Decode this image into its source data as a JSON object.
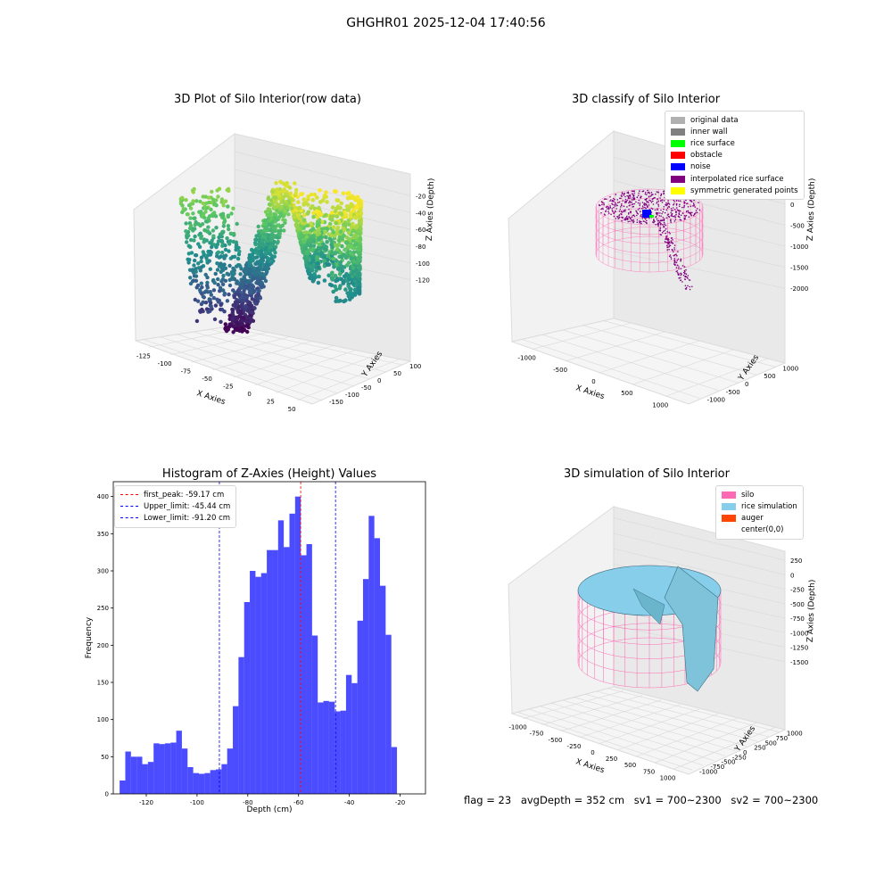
{
  "suptitle": "GHGHR01 2025-12-04 17:40:56",
  "panels": {
    "p1": {
      "title": "3D Plot of Silo Interior(row data)",
      "xlabel": "X Axies",
      "ylabel": "Y Axies",
      "zlabel": "Z Axies (Depth)",
      "xticks": [
        "-125",
        "-100",
        "-75",
        "-50",
        "-25",
        "0",
        "25",
        "50"
      ],
      "yticks": [
        "-150",
        "-100",
        "-50",
        "0",
        "50",
        "100"
      ],
      "zticks": [
        "-20",
        "-40",
        "-60",
        "-80",
        "-100",
        "-120"
      ]
    },
    "p2": {
      "title": "3D classify of Silo Interior",
      "xlabel": "X Axies",
      "ylabel": "Y Axies",
      "zlabel": "Z Axies (Depth)",
      "xticks": [
        "-1000",
        "-500",
        "0",
        "500",
        "1000"
      ],
      "yticks": [
        "-1000",
        "-500",
        "0",
        "500",
        "1000"
      ],
      "zticks": [
        "0",
        "-500",
        "-1000",
        "-1500",
        "-2000"
      ],
      "legend": [
        {
          "label": "original data",
          "color": "#b0b0b0"
        },
        {
          "label": "inner wall",
          "color": "#808080"
        },
        {
          "label": "rice surface",
          "color": "#00ff00"
        },
        {
          "label": "obstacle",
          "color": "#ff0000"
        },
        {
          "label": "noise",
          "color": "#0000ff"
        },
        {
          "label": "interpolated rice surface",
          "color": "#800080"
        },
        {
          "label": "symmetric generated points",
          "color": "#ffff00"
        }
      ]
    },
    "p3": {
      "title": "Histogram of Z-Axies (Height) Values",
      "xlabel": "Depth (cm)",
      "ylabel": "Frequency",
      "legend": [
        {
          "label": "first_peak: -59.17 cm",
          "color": "#ff0000"
        },
        {
          "label": "Upper_limit: -45.44 cm",
          "color": "#0000ff"
        },
        {
          "label": "Lower_limit: -91.20 cm",
          "color": "#0000ff"
        }
      ]
    },
    "p4": {
      "title": "3D simulation of Silo Interior",
      "xlabel": "X Axies",
      "ylabel": "Y Axies",
      "zlabel": "Z Axies (Depth)",
      "xticks": [
        "-1000",
        "-750",
        "-500",
        "-250",
        "0",
        "250",
        "500",
        "750",
        "1000"
      ],
      "yticks": [
        "-1000",
        "-750",
        "-500",
        "-250",
        "0",
        "250",
        "500",
        "750",
        "1000"
      ],
      "zticks": [
        "250",
        "0",
        "-250",
        "-500",
        "-750",
        "-1000",
        "-1250",
        "-1500"
      ],
      "legend": [
        {
          "label": "silo",
          "color": "#ff69b4"
        },
        {
          "label": "rice simulation",
          "color": "#87ceeb"
        },
        {
          "label": "auger",
          "color": "#ff4500"
        },
        {
          "label": "center(0,0)",
          "color": ""
        }
      ]
    }
  },
  "info": {
    "flag": "flag = 23",
    "avg": "avgDepth = 352 cm",
    "sv1": "sv1 = 700~2300",
    "sv2": "sv2 = 700~2300"
  },
  "chart_data": [
    {
      "type": "scatter",
      "title": "3D Plot of Silo Interior(row data)",
      "xlabel": "X Axies",
      "ylabel": "Y Axies",
      "zlabel": "Z Axies (Depth)",
      "xlim": [
        -135,
        60
      ],
      "ylim": [
        -155,
        110
      ],
      "zlim": [
        -130,
        -15
      ],
      "colormap": "viridis"
    },
    {
      "type": "scatter",
      "title": "3D classify of Silo Interior",
      "xlabel": "X Axies",
      "ylabel": "Y Axies",
      "zlabel": "Z Axies (Depth)",
      "xlim": [
        -1200,
        1200
      ],
      "ylim": [
        -1200,
        1200
      ],
      "zlim": [
        -2200,
        0
      ]
    },
    {
      "type": "bar",
      "title": "Histogram of Z-Axies (Height) Values",
      "xlabel": "Depth (cm)",
      "ylabel": "Frequency",
      "xlim": [
        -133,
        -10
      ],
      "ylim": [
        0,
        420
      ],
      "bin_start": -130.5,
      "bin_width": 2.23,
      "values": [
        18,
        57,
        50,
        50,
        40,
        43,
        68,
        67,
        68,
        69,
        85,
        61,
        36,
        28,
        27,
        28,
        32,
        33,
        40,
        61,
        118,
        184,
        258,
        300,
        292,
        297,
        328,
        328,
        368,
        332,
        377,
        400,
        321,
        336,
        213,
        123,
        125,
        124,
        111,
        112,
        160,
        149,
        233,
        289,
        374,
        344,
        280,
        214,
        63
      ],
      "vlines": [
        {
          "name": "first_peak",
          "x": -59.17,
          "color": "#ff0000"
        },
        {
          "name": "Upper_limit",
          "x": -45.44,
          "color": "#0000ff"
        },
        {
          "name": "Lower_limit",
          "x": -91.2,
          "color": "#0000ff"
        }
      ],
      "xticks": [
        -120,
        -100,
        -80,
        -60,
        -40,
        -20
      ],
      "yticks": [
        0,
        50,
        100,
        150,
        200,
        250,
        300,
        350,
        400
      ],
      "bar_color": "#0000ff"
    },
    {
      "type": "area",
      "title": "3D simulation of Silo Interior",
      "xlabel": "X Axies",
      "ylabel": "Y Axies",
      "zlabel": "Z Axies (Depth)",
      "xlim": [
        -1000,
        1000
      ],
      "ylim": [
        -1000,
        1000
      ],
      "zlim": [
        -1600,
        350
      ]
    }
  ]
}
